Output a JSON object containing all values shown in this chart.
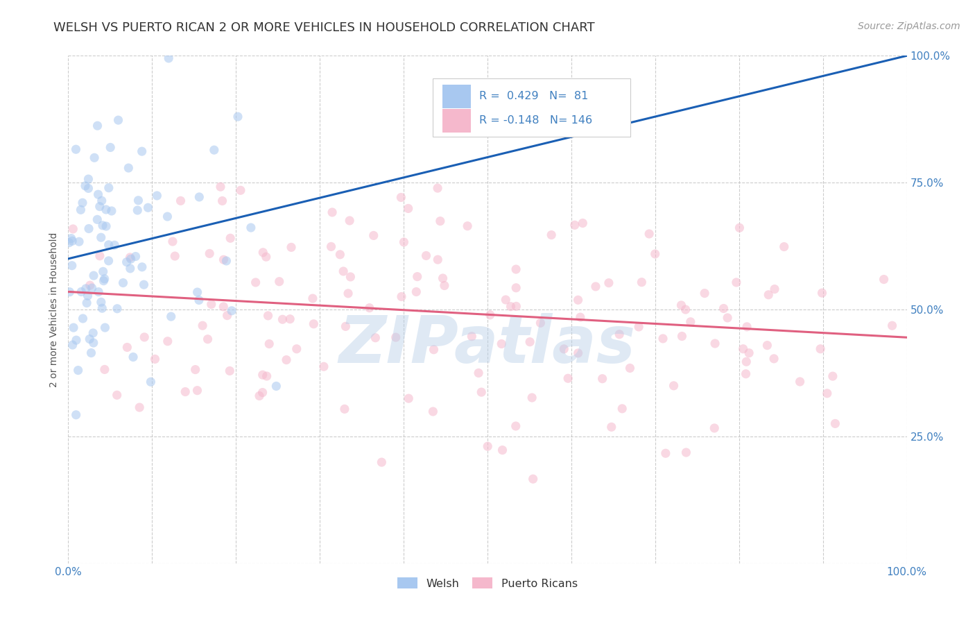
{
  "title": "WELSH VS PUERTO RICAN 2 OR MORE VEHICLES IN HOUSEHOLD CORRELATION CHART",
  "source": "Source: ZipAtlas.com",
  "ylabel": "2 or more Vehicles in Household",
  "welsh_R": 0.429,
  "welsh_N": 81,
  "puerto_rican_R": -0.148,
  "puerto_rican_N": 146,
  "xlim": [
    0,
    1
  ],
  "ylim": [
    0,
    1
  ],
  "x_ticks": [
    0,
    0.1,
    0.2,
    0.3,
    0.4,
    0.5,
    0.6,
    0.7,
    0.8,
    0.9,
    1.0
  ],
  "x_tick_labels": [
    "0.0%",
    "",
    "",
    "",
    "",
    "",
    "",
    "",
    "",
    "",
    "100.0%"
  ],
  "y_ticks": [
    0,
    0.25,
    0.5,
    0.75,
    1.0
  ],
  "y_tick_labels_right": [
    "",
    "25.0%",
    "50.0%",
    "75.0%",
    "100.0%"
  ],
  "welsh_color": "#a8c8f0",
  "puerto_rican_color": "#f5b8cc",
  "welsh_line_color": "#1a5fb4",
  "puerto_rican_line_color": "#e06080",
  "watermark": "ZIPatlas",
  "background_color": "#ffffff",
  "grid_color": "#c0c0c0",
  "title_color": "#333333",
  "legend_label_welsh": "Welsh",
  "legend_label_pr": "Puerto Ricans",
  "title_fontsize": 13,
  "axis_label_fontsize": 10,
  "tick_fontsize": 11,
  "source_fontsize": 10,
  "marker_size": 90,
  "marker_alpha": 0.55,
  "tick_color": "#4080c0",
  "welsh_line_intercept": 0.6,
  "welsh_line_slope": 0.4,
  "pr_line_intercept": 0.535,
  "pr_line_slope": -0.09
}
